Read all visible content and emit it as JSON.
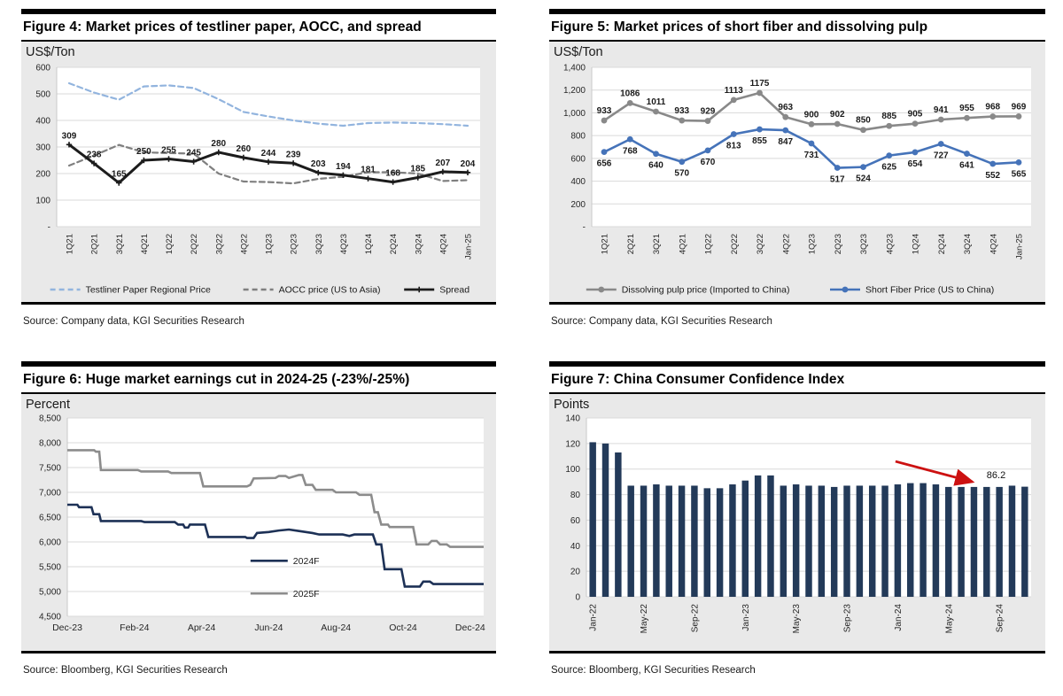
{
  "figures": [
    {
      "id": "fig4",
      "title": "Figure 4: Market prices of testliner paper, AOCC, and spread",
      "unit": "US$/Ton",
      "source": "Source: Company data, KGI Securities Research"
    },
    {
      "id": "fig5",
      "title": "Figure 5: Market prices of short fiber and dissolving pulp",
      "unit": "US$/Ton",
      "source": "Source: Company data, KGI Securities Research"
    },
    {
      "id": "fig6",
      "title": "Figure 6: Huge market earnings cut in 2024-25 (-23%/-25%)",
      "unit": "Percent",
      "source": "Source: Bloomberg, KGI Securities Research"
    },
    {
      "id": "fig7",
      "title": "Figure 7: China Consumer Confidence Index",
      "unit": "Points",
      "source": "Source: Bloomberg, KGI Securities Research"
    }
  ],
  "chart_data": [
    {
      "type": "line",
      "title": "Figure 4: Market prices of testliner paper, AOCC, and spread",
      "ylabel": "US$/Ton",
      "categories": [
        "1Q21",
        "2Q21",
        "3Q21",
        "4Q21",
        "1Q22",
        "2Q22",
        "3Q22",
        "4Q22",
        "1Q23",
        "2Q23",
        "3Q23",
        "4Q23",
        "1Q24",
        "2Q24",
        "3Q24",
        "4Q24",
        "Jan-25"
      ],
      "series": [
        {
          "name": "Testliner Paper Regional Price",
          "color": "#92b4de",
          "dash": "6 4",
          "width": 2.2,
          "marker": "none",
          "show_labels": false,
          "values": [
            540,
            505,
            478,
            528,
            532,
            522,
            480,
            432,
            415,
            400,
            388,
            380,
            390,
            392,
            390,
            386,
            380
          ]
        },
        {
          "name": "AOCC price (US to Asia)",
          "color": "#7f7f7f",
          "dash": "6 4",
          "width": 2.2,
          "marker": "none",
          "show_labels": false,
          "values": [
            230,
            268,
            308,
            280,
            277,
            275,
            200,
            170,
            168,
            163,
            180,
            188,
            205,
            205,
            200,
            172,
            175
          ]
        },
        {
          "name": "Spread",
          "color": "#1c1c1c",
          "dash": "",
          "width": 3,
          "marker": "plus",
          "show_labels": true,
          "label_offset": -7,
          "values": [
            309,
            238,
            165,
            250,
            255,
            245,
            280,
            260,
            244,
            239,
            203,
            194,
            181,
            168,
            185,
            207,
            204
          ]
        }
      ],
      "ylim": [
        0,
        600
      ],
      "yticks": [
        {
          "v": 600,
          "label": "600"
        },
        {
          "v": 500,
          "label": "500"
        },
        {
          "v": 400,
          "label": "400"
        },
        {
          "v": 300,
          "label": "300"
        },
        {
          "v": 200,
          "label": "200"
        },
        {
          "v": 100,
          "label": "100"
        },
        {
          "v": 0,
          "label": "-"
        }
      ],
      "legend_position": "bottom"
    },
    {
      "type": "line",
      "title": "Figure 5: Market prices of short fiber and dissolving pulp",
      "ylabel": "US$/Ton",
      "categories": [
        "1Q21",
        "2Q21",
        "3Q21",
        "4Q21",
        "1Q22",
        "2Q22",
        "3Q22",
        "4Q22",
        "1Q23",
        "2Q23",
        "3Q23",
        "4Q23",
        "1Q24",
        "2Q24",
        "3Q24",
        "4Q24",
        "Jan-25"
      ],
      "series": [
        {
          "name": "Dissolving pulp price (Imported to China)",
          "color": "#898989",
          "dash": "",
          "width": 2.6,
          "marker": "circle",
          "show_labels": true,
          "label_offset": -8,
          "values": [
            933,
            1086,
            1011,
            933,
            929,
            1113,
            1175,
            963,
            900,
            902,
            850,
            885,
            905,
            941,
            955,
            968,
            969
          ]
        },
        {
          "name": "Short Fiber Price (US to China)",
          "color": "#4573b9",
          "dash": "",
          "width": 2.6,
          "marker": "circle",
          "show_labels": true,
          "label_offset": 16,
          "values": [
            656,
            768,
            640,
            570,
            670,
            813,
            855,
            847,
            731,
            517,
            524,
            625,
            654,
            727,
            641,
            552,
            565
          ]
        }
      ],
      "ylim": [
        0,
        1400
      ],
      "yticks": [
        {
          "v": 1400,
          "label": "1,400"
        },
        {
          "v": 1200,
          "label": "1,200"
        },
        {
          "v": 1000,
          "label": "1,000"
        },
        {
          "v": 800,
          "label": "800"
        },
        {
          "v": 600,
          "label": "600"
        },
        {
          "v": 400,
          "label": "400"
        },
        {
          "v": 200,
          "label": "200"
        },
        {
          "v": 0,
          "label": "-"
        }
      ],
      "legend_position": "bottom"
    },
    {
      "type": "step",
      "title": "Figure 6: Huge market earnings cut in 2024-25 (-23%/-25%)",
      "ylabel": "Percent",
      "xlim": [
        0,
        12.4
      ],
      "ylim": [
        4500,
        8500
      ],
      "yticks": [
        {
          "v": 8500,
          "label": "8,500"
        },
        {
          "v": 8000,
          "label": "8,000"
        },
        {
          "v": 7500,
          "label": "7,500"
        },
        {
          "v": 7000,
          "label": "7,000"
        },
        {
          "v": 6500,
          "label": "6,500"
        },
        {
          "v": 6000,
          "label": "6,000"
        },
        {
          "v": 5500,
          "label": "5,500"
        },
        {
          "v": 5000,
          "label": "5,000"
        },
        {
          "v": 4500,
          "label": "4,500"
        }
      ],
      "xticks": [
        {
          "x": 0,
          "label": "Dec-23"
        },
        {
          "x": 2,
          "label": "Feb-24"
        },
        {
          "x": 4,
          "label": "Apr-24"
        },
        {
          "x": 6,
          "label": "Jun-24"
        },
        {
          "x": 8,
          "label": "Aug-24"
        },
        {
          "x": 10,
          "label": "Oct-24"
        },
        {
          "x": 12,
          "label": "Dec-24"
        }
      ],
      "series": [
        {
          "name": "2024F",
          "color": "#1d3156",
          "width": 2.6,
          "points": [
            [
              0,
              6750
            ],
            [
              0.3,
              6750
            ],
            [
              0.35,
              6700
            ],
            [
              0.72,
              6700
            ],
            [
              0.78,
              6560
            ],
            [
              0.95,
              6560
            ],
            [
              1.0,
              6420
            ],
            [
              2.2,
              6420
            ],
            [
              2.3,
              6400
            ],
            [
              3.2,
              6400
            ],
            [
              3.3,
              6350
            ],
            [
              3.45,
              6350
            ],
            [
              3.5,
              6290
            ],
            [
              3.6,
              6290
            ],
            [
              3.65,
              6350
            ],
            [
              4.1,
              6350
            ],
            [
              4.2,
              6100
            ],
            [
              5.3,
              6100
            ],
            [
              5.35,
              6080
            ],
            [
              5.55,
              6080
            ],
            [
              5.65,
              6180
            ],
            [
              6.0,
              6200
            ],
            [
              6.3,
              6230
            ],
            [
              6.6,
              6250
            ],
            [
              6.9,
              6220
            ],
            [
              7.3,
              6180
            ],
            [
              7.5,
              6150
            ],
            [
              8.2,
              6150
            ],
            [
              8.4,
              6120
            ],
            [
              8.55,
              6150
            ],
            [
              9.1,
              6150
            ],
            [
              9.2,
              5950
            ],
            [
              9.35,
              5950
            ],
            [
              9.45,
              5450
            ],
            [
              9.95,
              5450
            ],
            [
              10.05,
              5100
            ],
            [
              10.5,
              5100
            ],
            [
              10.6,
              5200
            ],
            [
              10.8,
              5200
            ],
            [
              10.9,
              5150
            ],
            [
              12.4,
              5150
            ]
          ]
        },
        {
          "name": "2025F",
          "color": "#8c8c8c",
          "width": 2.6,
          "points": [
            [
              0,
              7850
            ],
            [
              0.8,
              7850
            ],
            [
              0.85,
              7820
            ],
            [
              0.95,
              7820
            ],
            [
              1.0,
              7450
            ],
            [
              2.1,
              7450
            ],
            [
              2.2,
              7420
            ],
            [
              3.0,
              7420
            ],
            [
              3.1,
              7390
            ],
            [
              3.95,
              7390
            ],
            [
              4.05,
              7120
            ],
            [
              5.35,
              7120
            ],
            [
              5.45,
              7150
            ],
            [
              5.55,
              7280
            ],
            [
              6.2,
              7290
            ],
            [
              6.3,
              7330
            ],
            [
              6.5,
              7330
            ],
            [
              6.6,
              7290
            ],
            [
              6.9,
              7350
            ],
            [
              7.0,
              7350
            ],
            [
              7.1,
              7150
            ],
            [
              7.3,
              7150
            ],
            [
              7.4,
              7050
            ],
            [
              7.9,
              7050
            ],
            [
              8.0,
              7000
            ],
            [
              8.6,
              7000
            ],
            [
              8.7,
              6950
            ],
            [
              9.05,
              6950
            ],
            [
              9.15,
              6600
            ],
            [
              9.25,
              6600
            ],
            [
              9.35,
              6350
            ],
            [
              9.55,
              6350
            ],
            [
              9.6,
              6300
            ],
            [
              10.3,
              6300
            ],
            [
              10.4,
              5950
            ],
            [
              10.75,
              5950
            ],
            [
              10.85,
              6020
            ],
            [
              11.0,
              6020
            ],
            [
              11.1,
              5950
            ],
            [
              11.3,
              5950
            ],
            [
              11.4,
              5900
            ],
            [
              12.4,
              5900
            ]
          ]
        }
      ],
      "legend_position": "inside"
    },
    {
      "type": "bar",
      "title": "Figure 7: China Consumer Confidence Index",
      "ylabel": "Points",
      "bar_color": "#233a59",
      "values": [
        121,
        120,
        113,
        87,
        87,
        88,
        87,
        87,
        87,
        85,
        85,
        88,
        91,
        95,
        95,
        87,
        88,
        87,
        87,
        86,
        87,
        87,
        87,
        87,
        88,
        89,
        89,
        88,
        86,
        86,
        86,
        86,
        86,
        87,
        86.2
      ],
      "ylim": [
        0,
        140
      ],
      "yticks": [
        {
          "v": 140,
          "label": "140"
        },
        {
          "v": 120,
          "label": "120"
        },
        {
          "v": 100,
          "label": "100"
        },
        {
          "v": 80,
          "label": "80"
        },
        {
          "v": 60,
          "label": "60"
        },
        {
          "v": 40,
          "label": "40"
        },
        {
          "v": 20,
          "label": "20"
        },
        {
          "v": 0,
          "label": "0"
        }
      ],
      "xtick_indices": [
        0,
        4,
        8,
        12,
        16,
        20,
        24,
        28,
        32
      ],
      "xtick_labels": [
        "Jan-22",
        "May-22",
        "Sep-22",
        "Jan-23",
        "May-23",
        "Sep-23",
        "Jan-24",
        "May-24",
        "Sep-24"
      ],
      "annotation": {
        "text": "86.2",
        "color": "#cc1111"
      }
    }
  ]
}
